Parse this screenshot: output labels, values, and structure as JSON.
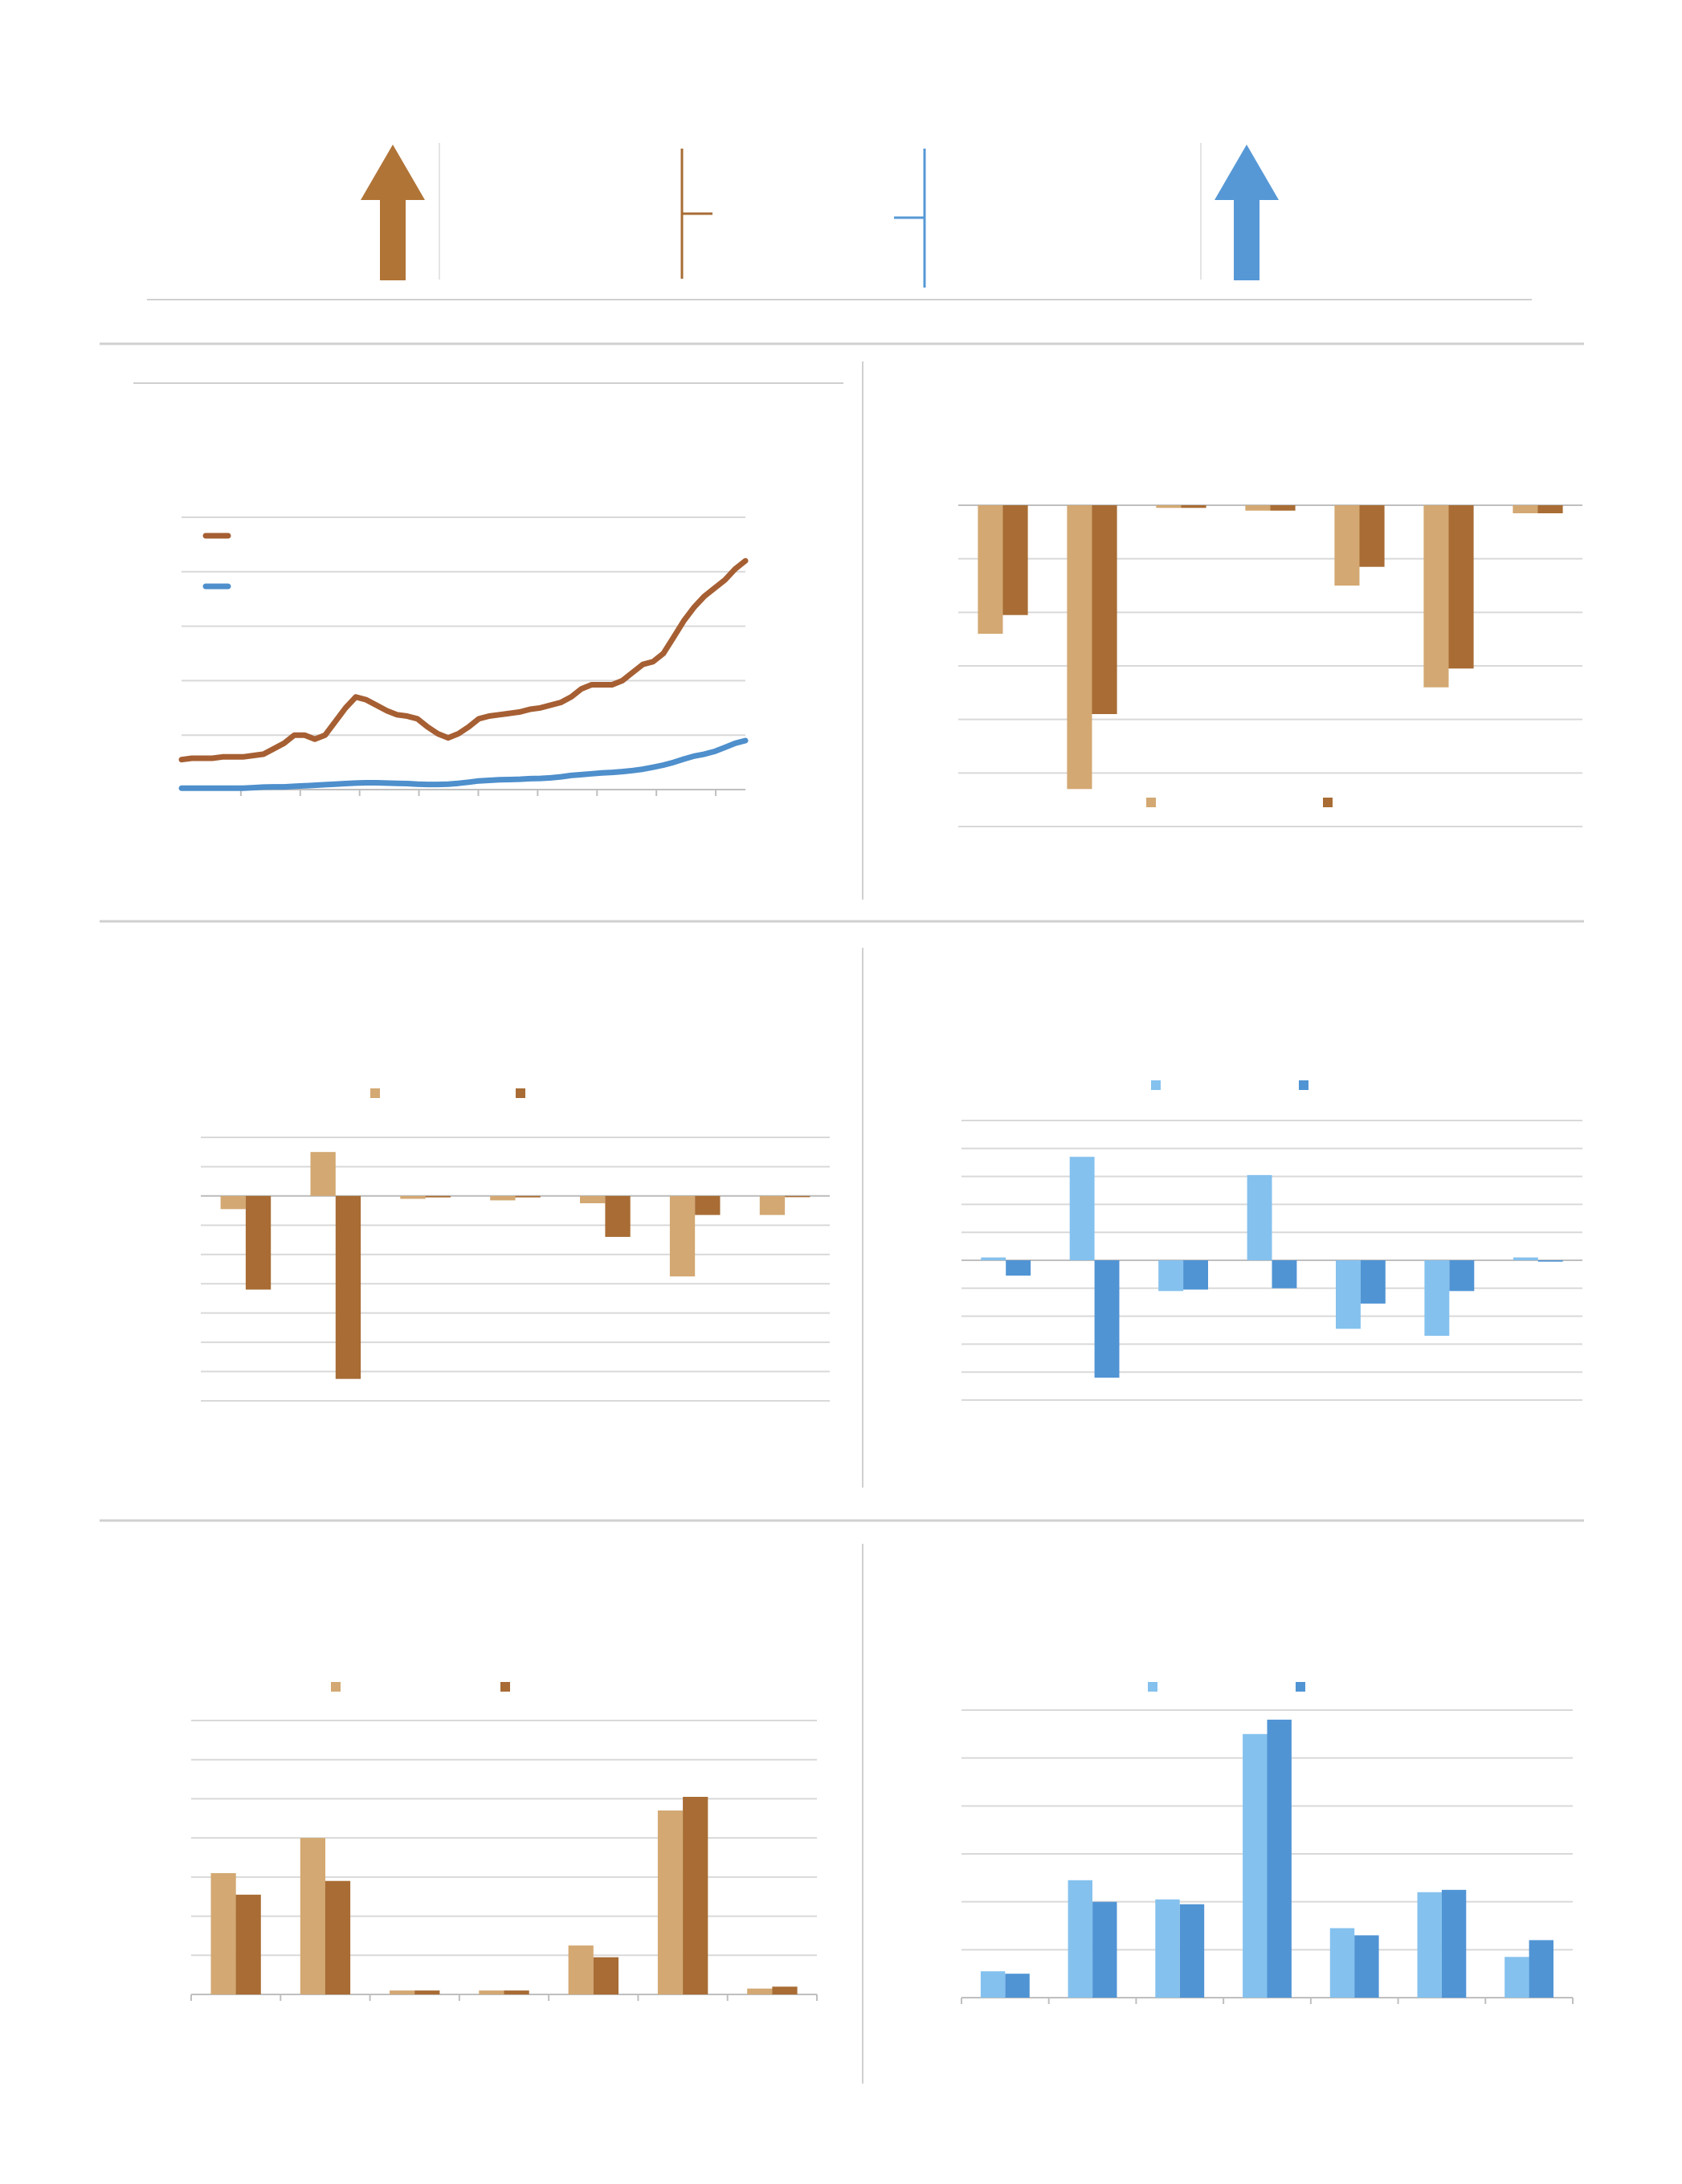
{
  "colors": {
    "brown": "#B07437",
    "brown_dark": "#A86C34",
    "tan": "#D3A872",
    "blue": "#5698D6",
    "blue_dark": "#5094D4",
    "light_blue": "#84C1EE",
    "rule": "#D0D0D0",
    "grid": "#D9D9D9",
    "axis": "#BFBFBF"
  },
  "header": {
    "icons": [
      "up-arrow-icon-brown",
      "bracket-brown",
      "bracket-blue",
      "up-arrow-icon-blue"
    ]
  },
  "chart_data": [
    {
      "id": "line-trend",
      "type": "line",
      "title": "",
      "xlabel": "",
      "ylabel": "",
      "ylim": [
        0,
        100
      ],
      "grid": true,
      "legend": "top-left",
      "series": [
        {
          "color": "#A65F33",
          "y": [
            11,
            11.5,
            11.5,
            11.5,
            12,
            12,
            12,
            12.5,
            13,
            15,
            17,
            20,
            20,
            18.5,
            20,
            25,
            30,
            34,
            33,
            31,
            29,
            27.5,
            27,
            26,
            23,
            20.5,
            19,
            20.5,
            23,
            26,
            27,
            27.5,
            28,
            28.5,
            29.5,
            30,
            31,
            32,
            34,
            37,
            38.5,
            38.5,
            38.5,
            40,
            43,
            46,
            47,
            50,
            56,
            62,
            67,
            71,
            74,
            77,
            81,
            84
          ]
        },
        {
          "color": "#4E8FCC",
          "y": [
            0.5,
            0.5,
            0.5,
            0.5,
            0.5,
            0.5,
            0.5,
            0.7,
            0.9,
            1,
            1,
            1.2,
            1.4,
            1.6,
            1.8,
            2,
            2.2,
            2.4,
            2.5,
            2.5,
            2.4,
            2.3,
            2.2,
            2,
            1.9,
            1.9,
            2,
            2.3,
            2.7,
            3.2,
            3.4,
            3.6,
            3.7,
            3.8,
            4,
            4.1,
            4.3,
            4.7,
            5.2,
            5.5,
            5.8,
            6.1,
            6.3,
            6.6,
            7,
            7.5,
            8.2,
            9,
            10,
            11.2,
            12.3,
            13,
            14,
            15.5,
            17,
            18
          ]
        }
      ]
    },
    {
      "id": "bar-top-right",
      "type": "bar",
      "categories": [
        "",
        "",
        "",
        "",
        "",
        "",
        ""
      ],
      "legend": "bottom",
      "ylim": [
        -6,
        0
      ],
      "series": [
        {
          "color": "#D3A872",
          "values": [
            -2.4,
            -5.3,
            -0.05,
            -0.1,
            -1.5,
            -3.4,
            -0.15
          ]
        },
        {
          "color": "#A86C34",
          "values": [
            -2.05,
            -3.9,
            -0.05,
            -0.1,
            -1.15,
            -3.05,
            -0.15
          ]
        }
      ]
    },
    {
      "id": "bar-middle-left",
      "type": "bar",
      "categories": [
        "",
        "",
        "",
        "",
        "",
        "",
        ""
      ],
      "legend": "top",
      "ylim": [
        -7,
        2
      ],
      "series": [
        {
          "color": "#D3A872",
          "values": [
            -0.45,
            1.5,
            -0.1,
            -0.15,
            -0.25,
            -2.75,
            -0.65
          ]
        },
        {
          "color": "#A86C34",
          "values": [
            -3.2,
            -6.25,
            -0.05,
            -0.05,
            -1.4,
            -0.65,
            0
          ]
        }
      ]
    },
    {
      "id": "bar-middle-right",
      "type": "bar",
      "categories": [
        "",
        "",
        "",
        "",
        "",
        "",
        ""
      ],
      "legend": "top",
      "ylim": [
        -5,
        5
      ],
      "series": [
        {
          "color": "#84C1EE",
          "values": [
            0.1,
            3.7,
            -1.1,
            3.05,
            -2.45,
            -2.7,
            0.1
          ]
        },
        {
          "color": "#5094D4",
          "values": [
            -0.55,
            -4.2,
            -1.05,
            -1.0,
            -1.55,
            -1.1,
            -0.05
          ]
        }
      ]
    },
    {
      "id": "bar-bottom-left",
      "type": "bar",
      "categories": [
        "",
        "",
        "",
        "",
        "",
        "",
        ""
      ],
      "legend": "top",
      "ylim": [
        0,
        7
      ],
      "series": [
        {
          "color": "#D3A872",
          "values": [
            3.1,
            4.0,
            0.1,
            0.1,
            1.25,
            4.7,
            0.15
          ]
        },
        {
          "color": "#A86C34",
          "values": [
            2.55,
            2.9,
            0.1,
            0.1,
            0.95,
            5.05,
            0.2
          ]
        }
      ]
    },
    {
      "id": "bar-bottom-right",
      "type": "bar",
      "categories": [
        "",
        "",
        "",
        "",
        "",
        "",
        ""
      ],
      "legend": "top",
      "ylim": [
        0,
        6
      ],
      "series": [
        {
          "color": "#84C1EE",
          "values": [
            0.55,
            2.45,
            2.05,
            5.5,
            1.45,
            2.2,
            0.85
          ]
        },
        {
          "color": "#5094D4",
          "values": [
            0.5,
            2.0,
            1.95,
            5.8,
            1.3,
            2.25,
            1.2
          ]
        }
      ]
    }
  ]
}
